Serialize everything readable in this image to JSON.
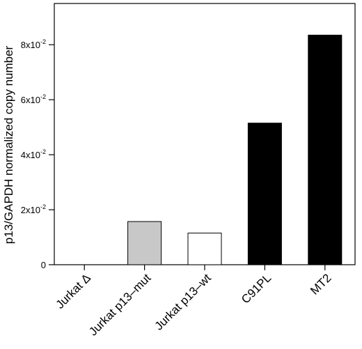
{
  "chart_data": {
    "type": "bar",
    "title": "",
    "xlabel": "",
    "ylabel": "p13/GAPDH normalized copy number",
    "categories": [
      "Jurkat Δ",
      "Jurkat p13–mut",
      "Jurkat p13–wt",
      "C91PL",
      "MT2"
    ],
    "values": [
      0,
      0.0157,
      0.0115,
      0.0515,
      0.0835
    ],
    "bar_colors": [
      "#000000",
      "#c8c8c8",
      "#ffffff",
      "#000000",
      "#000000"
    ],
    "ylim": [
      0,
      0.095
    ],
    "yticks": [
      {
        "value": 0,
        "mantissa": "0",
        "exponent": ""
      },
      {
        "value": 0.02,
        "mantissa": "2x10",
        "exponent": "-2"
      },
      {
        "value": 0.04,
        "mantissa": "4x10",
        "exponent": "-2"
      },
      {
        "value": 0.06,
        "mantissa": "6x10",
        "exponent": "-2"
      },
      {
        "value": 0.08,
        "mantissa": "8x10",
        "exponent": "-2"
      }
    ],
    "grid": false,
    "legend": "none"
  }
}
